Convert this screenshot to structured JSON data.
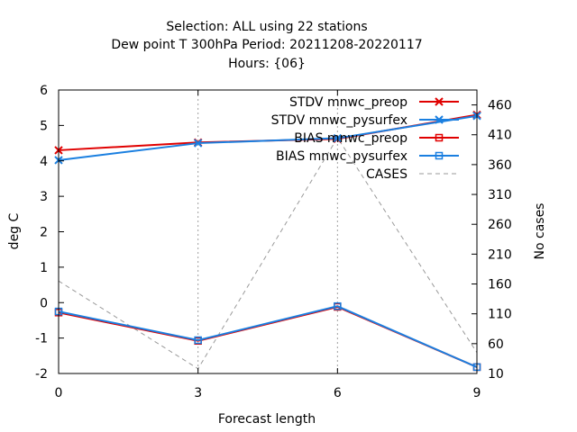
{
  "chart_data": {
    "type": "line",
    "title_lines": [
      "Selection: ALL using    22 stations",
      "Dew point T 300hPa   Period: 20211208-20220117",
      "Hours: {06}"
    ],
    "xlabel": "Forecast length",
    "ylabel": "deg C",
    "y2label": "No cases",
    "x": [
      0,
      3,
      6,
      9
    ],
    "xticks": [
      "0",
      "3",
      "6",
      "9"
    ],
    "xlim": [
      0,
      9
    ],
    "ylim": [
      -2,
      6
    ],
    "yticks": [
      "-2",
      "-1",
      "0",
      "1",
      "2",
      "3",
      "4",
      "5",
      "6"
    ],
    "y2lim": [
      10,
      485
    ],
    "y2ticks": [
      "10",
      "60",
      "110",
      "160",
      "210",
      "260",
      "310",
      "360",
      "410",
      "460"
    ],
    "grid": "vertical dashed at x ticks",
    "legend_position": "top-right",
    "series": [
      {
        "name": "STDV mnwc_preop",
        "axis": "y",
        "color": "#e00000",
        "marker": "x",
        "values": [
          4.3,
          4.52,
          4.62,
          5.3
        ]
      },
      {
        "name": "STDV mnwc_pysurfex",
        "axis": "y",
        "color": "#1a7fe0",
        "marker": "x",
        "values": [
          4.02,
          4.5,
          4.64,
          5.27
        ]
      },
      {
        "name": "BIAS mnwc_preop",
        "axis": "y",
        "color": "#e00000",
        "marker": "square",
        "values": [
          -0.28,
          -1.08,
          -0.12,
          -1.82
        ]
      },
      {
        "name": "BIAS mnwc_pysurfex",
        "axis": "y",
        "color": "#1a7fe0",
        "marker": "square",
        "values": [
          -0.25,
          -1.06,
          -0.1,
          -1.82
        ]
      },
      {
        "name": "CASES",
        "axis": "y2",
        "color": "#999999",
        "marker": "none",
        "dashed": true,
        "values": [
          165,
          18,
          405,
          45
        ]
      }
    ]
  }
}
